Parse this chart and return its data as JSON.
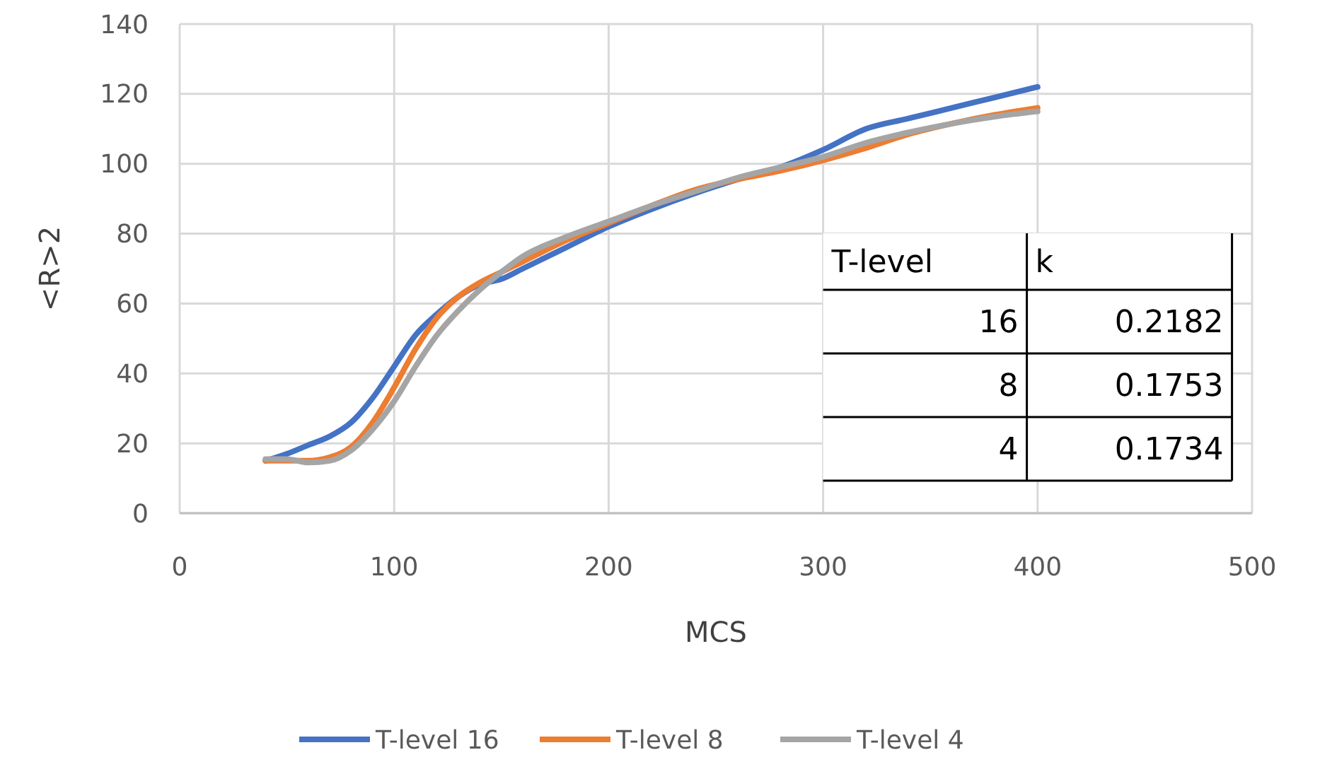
{
  "chart_data": {
    "type": "line",
    "xlabel": "MCS",
    "ylabel": "<R>2",
    "xlim": [
      0,
      500
    ],
    "xticks": [
      0,
      100,
      200,
      300,
      400,
      500
    ],
    "ylim": [
      0,
      140
    ],
    "yticks": [
      0,
      20,
      40,
      60,
      80,
      100,
      120,
      140
    ],
    "grid": true,
    "legend": "bottom",
    "marker": "none",
    "line_style": "solid",
    "x": [
      40,
      50,
      60,
      70,
      80,
      90,
      100,
      110,
      120,
      130,
      140,
      150,
      160,
      180,
      200,
      220,
      240,
      260,
      280,
      300,
      320,
      340,
      360,
      380,
      400
    ],
    "series": [
      {
        "name": "T-level 16",
        "color": "#4472c4",
        "values": [
          15,
          17,
          19.5,
          22,
          26,
          33,
          42,
          51,
          57,
          62,
          65.5,
          67,
          70,
          76,
          82,
          87,
          91.5,
          95.5,
          99,
          104,
          110,
          113,
          116,
          119,
          122
        ]
      },
      {
        "name": "T-level 8",
        "color": "#ed7d31",
        "values": [
          15,
          15,
          15,
          16,
          19,
          26,
          36,
          47,
          56,
          62,
          66,
          69,
          72,
          78,
          83,
          88,
          92.5,
          95.5,
          98,
          101,
          104.5,
          108.5,
          111.5,
          114,
          116
        ]
      },
      {
        "name": "T-level 4",
        "color": "#a5a5a5",
        "values": [
          15.5,
          15.5,
          14.5,
          15,
          18,
          24,
          32,
          42,
          51,
          58,
          64,
          69,
          73.5,
          79,
          83.5,
          88,
          92,
          96,
          99,
          102,
          106,
          109,
          111.5,
          113.5,
          115
        ]
      }
    ],
    "annotations": [
      "T-level",
      "k",
      "16",
      "0.2182",
      "8",
      "0.1753",
      "4",
      "0.1734"
    ]
  }
}
